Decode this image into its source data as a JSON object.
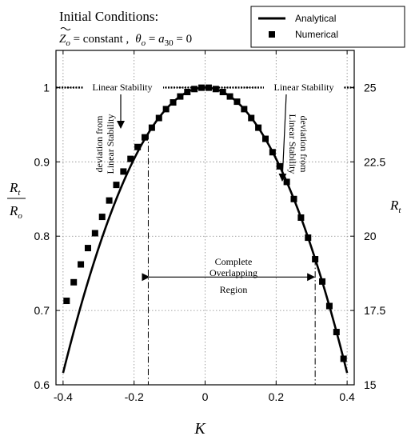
{
  "chart_data": {
    "type": "line",
    "header": {
      "line1": "Initial Conditions:",
      "z_sym": "Z",
      "z_sub": "o",
      "z_eq": " = constant ,",
      "theta_sym": "θ",
      "theta_sub": "o",
      "theta_mid": " = ",
      "a_sym": "a",
      "a_sub": "30",
      "theta_end": " = 0"
    },
    "legend": {
      "position": "top-right",
      "analytical": "Analytical",
      "numerical": "Numerical"
    },
    "axes": {
      "x_label": "K",
      "x_ticks": [
        "-0.4",
        "-0.2",
        "0",
        "0.2",
        "0.4"
      ],
      "x_tick_values": [
        -0.4,
        -0.2,
        0,
        0.2,
        0.4
      ],
      "xlim": [
        -0.42,
        0.42
      ],
      "y_left_ticks": [
        "0.6",
        "0.7",
        "0.8",
        "0.9",
        "1"
      ],
      "y_left_tick_values": [
        0.6,
        0.7,
        0.8,
        0.9,
        1.0
      ],
      "ylim": [
        0.6,
        1.05
      ],
      "y_left_label_num_sym": "R",
      "y_left_label_num_sub": "t",
      "y_left_label_den_sym": "R",
      "y_left_label_den_sub": "o",
      "y_right_ticks": [
        "15",
        "17.5",
        "20",
        "22.5",
        "25"
      ],
      "y_right_tick_values": [
        15,
        17.5,
        20,
        22.5,
        25
      ],
      "y_right_label_sym": "R",
      "y_right_label_sub": "t",
      "grid": true
    },
    "reference_line_y": 1.0,
    "overlap_bounds_k": [
      -0.16,
      0.31
    ],
    "annotations": {
      "linear_stability_left": "Linear Stability",
      "linear_stability_right": "Linear Stability",
      "deviation_line1": "deviation from",
      "deviation_line2": "Linear Stability",
      "overlap_line1": "Complete",
      "overlap_line2": "Overlapping",
      "overlap_line3": "Region"
    },
    "series": [
      {
        "name": "Analytical",
        "kind": "line",
        "formula": "1 - 2.4*K^2",
        "x_range": [
          -0.4,
          0.4
        ]
      },
      {
        "name": "Numerical",
        "kind": "markers",
        "x": [
          -0.39,
          -0.37,
          -0.35,
          -0.33,
          -0.31,
          -0.29,
          -0.27,
          -0.25,
          -0.23,
          -0.21,
          -0.19,
          -0.17,
          -0.15,
          -0.13,
          -0.11,
          -0.09,
          -0.07,
          -0.05,
          -0.03,
          -0.01,
          0.01,
          0.03,
          0.05,
          0.07,
          0.09,
          0.11,
          0.13,
          0.15,
          0.17,
          0.19,
          0.21,
          0.23,
          0.25,
          0.27,
          0.29,
          0.31,
          0.33,
          0.35,
          0.37,
          0.39
        ],
        "y": [
          0.713,
          0.738,
          0.762,
          0.784,
          0.804,
          0.826,
          0.848,
          0.869,
          0.887,
          0.904,
          0.92,
          0.933,
          0.946,
          0.959,
          0.971,
          0.98,
          0.988,
          0.994,
          0.998,
          0.9998,
          0.9998,
          0.998,
          0.994,
          0.988,
          0.981,
          0.971,
          0.959,
          0.946,
          0.931,
          0.913,
          0.894,
          0.873,
          0.85,
          0.825,
          0.798,
          0.769,
          0.739,
          0.706,
          0.671,
          0.635
        ]
      }
    ]
  }
}
